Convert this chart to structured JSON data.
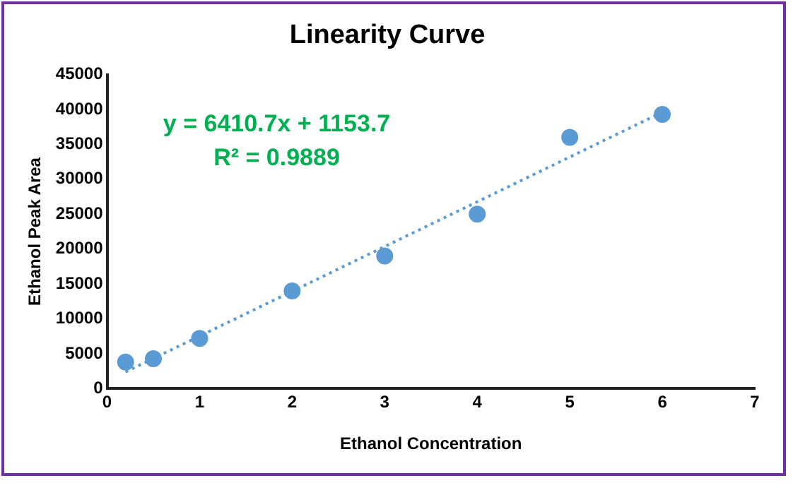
{
  "chart_data": {
    "type": "scatter",
    "title": "Linearity Curve",
    "xlabel": "Ethanol Concentration",
    "ylabel": "Ethanol Peak Area",
    "x": [
      0.2,
      0.5,
      1,
      2,
      3,
      4,
      5,
      6
    ],
    "xlim": [
      0,
      7
    ],
    "xticks": [
      0,
      1,
      2,
      3,
      4,
      5,
      6,
      7
    ],
    "ylim": [
      0,
      45000
    ],
    "yticks": [
      0,
      5000,
      10000,
      15000,
      20000,
      25000,
      30000,
      35000,
      40000,
      45000
    ],
    "grid": false,
    "legend": false,
    "marker": "circle",
    "series": [
      {
        "type": "scatter",
        "color": "#5b9bd5",
        "values": [
          3800,
          4300,
          7200,
          14000,
          19000,
          25000,
          36000,
          39300
        ]
      },
      {
        "type": "line",
        "x": [
          0.2,
          6
        ],
        "color": "#5b9bd5",
        "line_style": "dotted",
        "marker": "none",
        "values": [
          2400,
          39600
        ]
      }
    ],
    "annotations": [
      "y = 6410.7x + 1153.7",
      "R² = 0.9889"
    ]
  }
}
